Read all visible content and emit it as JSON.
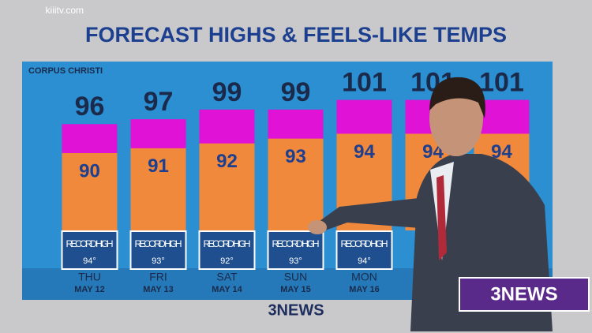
{
  "watermark": "kiiitv.com",
  "location": "CORPUS CHRISTI",
  "logo": "3NEWS",
  "record_text": "RECORD HIGH",
  "chart_data": {
    "type": "bar",
    "title": "FORECAST HIGHS & FEELS-LIKE TEMPS",
    "categories": [
      "THU",
      "FRI",
      "SAT",
      "SUN",
      "MON",
      null,
      null
    ],
    "dates": [
      "MAY 12",
      "MAY 13",
      "MAY 14",
      "MAY 15",
      "MAY 16",
      null,
      null
    ],
    "series": [
      {
        "color": "#e012d6",
        "values": [
          96,
          97,
          99,
          99,
          101,
          101,
          101
        ]
      },
      {
        "color": "#f0893c",
        "values": [
          90,
          91,
          92,
          93,
          94,
          94,
          94
        ]
      }
    ],
    "record_highs": {
      "values": [
        94,
        93,
        92,
        93,
        94,
        null,
        null
      ],
      "value_labels": [
        "94°",
        "93°",
        "92°",
        "93°",
        "94°",
        null,
        null
      ]
    },
    "ylim": [
      74,
      106
    ]
  }
}
